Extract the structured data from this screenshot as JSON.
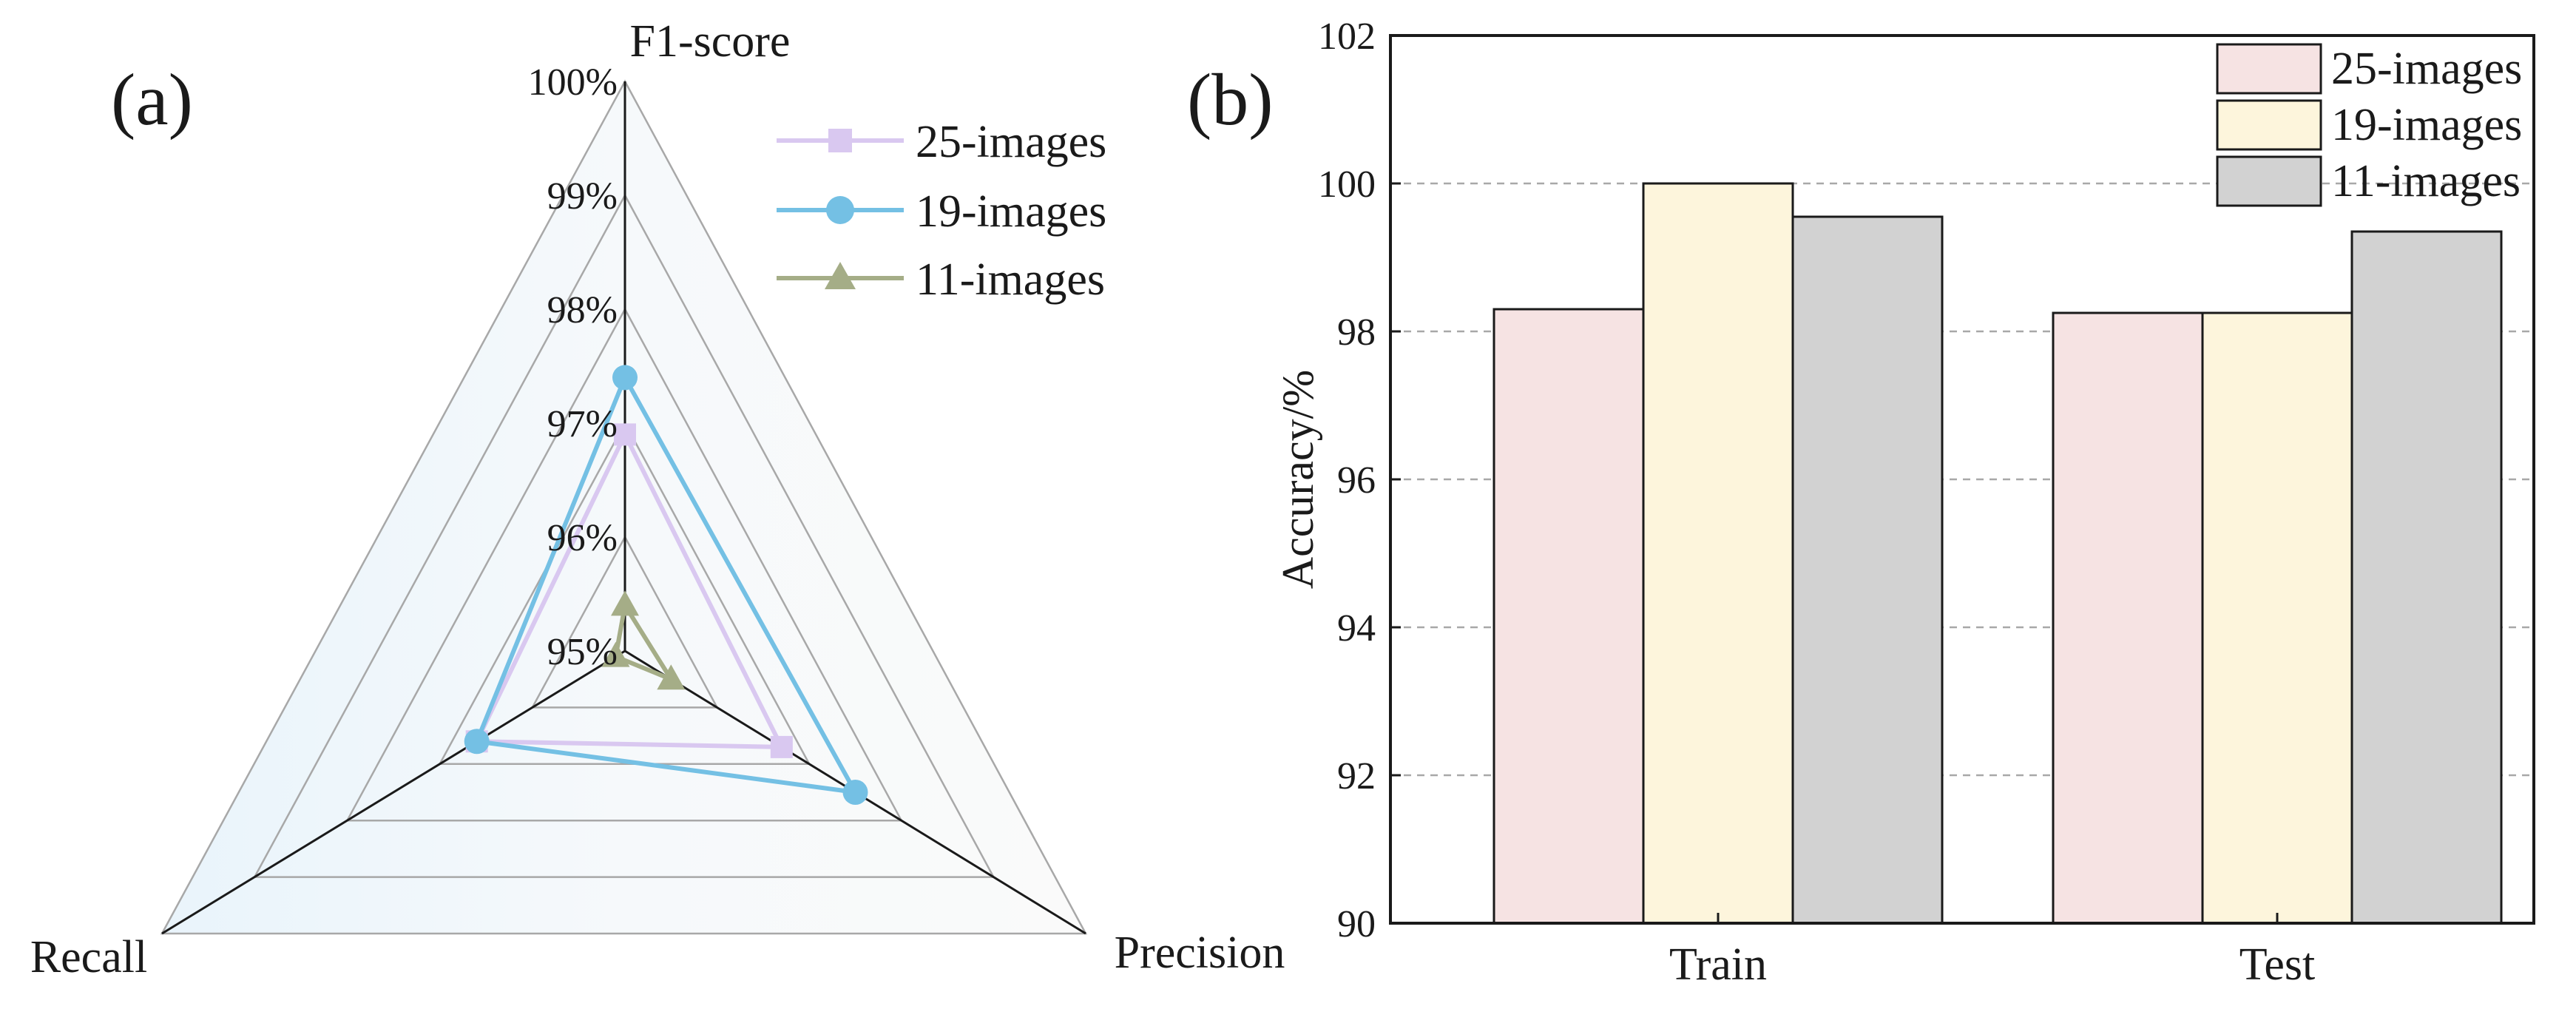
{
  "panels": {
    "a_label": "(a)",
    "b_label": "(b)"
  },
  "colors": {
    "s25_line": "#d9c8f0",
    "s19_line": "#74c0e4",
    "s11_line": "#a5ad87",
    "s25_bar": "#f6e3e3",
    "s19_bar": "#fdf5dc",
    "s11_bar": "#d2d2d2",
    "grid": "#a8a8a8",
    "axis": "#1a1a1a"
  },
  "chart_data": [
    {
      "type": "radar",
      "axes": [
        "F1-score",
        "Precision",
        "Recall"
      ],
      "range": [
        95,
        100
      ],
      "tick_labels": [
        "100%",
        "99%",
        "98%",
        "97%",
        "96%",
        "95%"
      ],
      "ticks": [
        100,
        99,
        98,
        97,
        96,
        95
      ],
      "series": [
        {
          "name": "25-images",
          "marker": "square",
          "values": [
            96.9,
            96.7,
            96.6
          ]
        },
        {
          "name": "19-images",
          "marker": "circle",
          "values": [
            97.4,
            97.5,
            96.6
          ]
        },
        {
          "name": "11-images",
          "marker": "triangle",
          "values": [
            95.4,
            95.5,
            95.1
          ]
        }
      ],
      "legend": "top-right"
    },
    {
      "type": "bar",
      "categories": [
        "Train",
        "Test"
      ],
      "series": [
        {
          "name": "25-images",
          "values": [
            98.3,
            98.25
          ]
        },
        {
          "name": "19-images",
          "values": [
            100.0,
            98.25
          ]
        },
        {
          "name": "11-images",
          "values": [
            99.55,
            99.35
          ]
        }
      ],
      "ylabel": "Accuracy/%",
      "xlabel": "",
      "ylim": [
        90,
        102
      ],
      "yticks": [
        90,
        92,
        94,
        96,
        98,
        100,
        102
      ],
      "grid": "dashed horizontal",
      "legend": "top-right"
    }
  ]
}
